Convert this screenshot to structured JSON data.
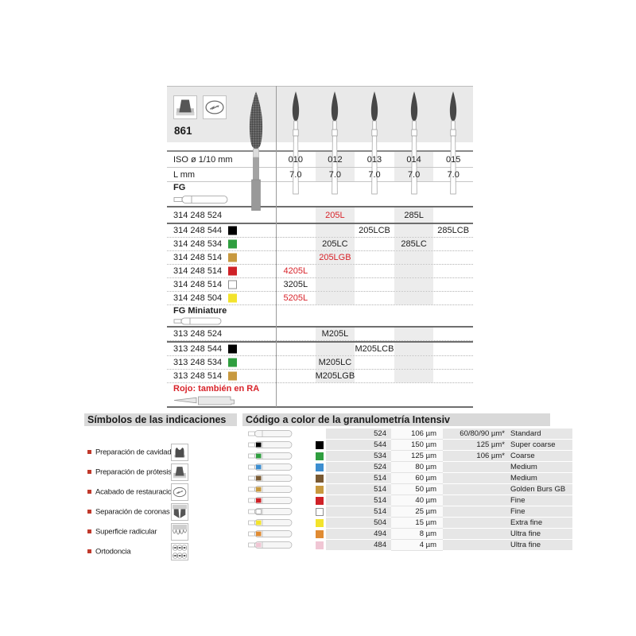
{
  "accent_red": "#d8232a",
  "model": {
    "number": "861",
    "header_icons": [
      "prosthesis-prep-icon",
      "restoration-finish-icon"
    ]
  },
  "spec_table": {
    "iso_label": "ISO ø 1/10 mm",
    "iso_values": [
      "010",
      "012",
      "013",
      "014",
      "015"
    ],
    "l_label": "L mm",
    "l_values": [
      "7.0",
      "7.0",
      "7.0",
      "7.0",
      "7.0"
    ],
    "fg_label": "FG",
    "fg_miniature_label": "FG Miniature",
    "ra_note": "Rojo: también en RA"
  },
  "fg_rows": [
    {
      "code": "314 248 524",
      "swatch": null,
      "values": [
        {
          "col": 2,
          "text": "205L",
          "red": true
        },
        {
          "col": 4,
          "text": "285L"
        }
      ]
    },
    {
      "code": "314 248 544",
      "swatch": "#000000",
      "values": [
        {
          "col": 3,
          "text": "205LCB"
        },
        {
          "col": 5,
          "text": "285LCB"
        }
      ]
    },
    {
      "code": "314 248 534",
      "swatch": "#2f9e3f",
      "values": [
        {
          "col": 2,
          "text": "205LC"
        },
        {
          "col": 4,
          "text": "285LC"
        }
      ]
    },
    {
      "code": "314 248 514",
      "swatch": "#c8993f",
      "values": [
        {
          "col": 2,
          "text": "205LGB",
          "red": true
        }
      ]
    },
    {
      "code": "314 248 514",
      "swatch": "#cf2127",
      "values": [
        {
          "col": 1,
          "text": "4205L",
          "red": true
        }
      ]
    },
    {
      "code": "314 248 514",
      "swatch": "#ffffff",
      "values": [
        {
          "col": 1,
          "text": "3205L"
        }
      ]
    },
    {
      "code": "314 248 504",
      "swatch": "#f3e32c",
      "values": [
        {
          "col": 1,
          "text": "5205L",
          "red": true
        }
      ]
    }
  ],
  "fg_miniature_rows": [
    {
      "code": "313 248 524",
      "swatch": null,
      "values": [
        {
          "col": 2,
          "text": "M205L"
        }
      ]
    },
    {
      "code": "313 248 544",
      "swatch": "#000000",
      "values": [
        {
          "col": 3,
          "text": "M205LCB"
        }
      ]
    },
    {
      "code": "313 248 534",
      "swatch": "#2f9e3f",
      "values": [
        {
          "col": 2,
          "text": "M205LC"
        }
      ]
    },
    {
      "code": "313 248 514",
      "swatch": "#c8993f",
      "values": [
        {
          "col": 2,
          "text": "M205LGB"
        }
      ]
    }
  ],
  "symbols": {
    "title": "Símbolos de las indicaciones",
    "items": [
      {
        "label": "Preparación de cavidades",
        "icon": "cavity-prep-icon"
      },
      {
        "label": "Preparación de prótesis",
        "icon": "prosthesis-prep-icon"
      },
      {
        "label": "Acabado de restauraciones",
        "icon": "restoration-finish-icon"
      },
      {
        "label": "Separación de coronas",
        "icon": "crown-separation-icon"
      },
      {
        "label": "Superficie radicular",
        "icon": "root-surface-icon"
      },
      {
        "label": "Ortodoncia",
        "icon": "orthodontics-icon"
      }
    ]
  },
  "grit": {
    "title": "Código a color de la granulometría Intensiv",
    "rows": [
      {
        "swatch": null,
        "code": "524",
        "size": "106 µm",
        "extra": "60/80/90 µm*",
        "desc": "Standard"
      },
      {
        "swatch": "#000000",
        "code": "544",
        "size": "150 µm",
        "extra": "125 µm*",
        "desc": "Super coarse"
      },
      {
        "swatch": "#2f9e3f",
        "code": "534",
        "size": "125 µm",
        "extra": "106 µm*",
        "desc": "Coarse"
      },
      {
        "swatch": "#3d8ed0",
        "code": "524",
        "size": "80 µm",
        "extra": "",
        "desc": "Medium"
      },
      {
        "swatch": "#7a5a33",
        "code": "514",
        "size": "60 µm",
        "extra": "",
        "desc": "Medium"
      },
      {
        "swatch": "#c8993f",
        "code": "514",
        "size": "50 µm",
        "extra": "",
        "desc": "Golden Burs GB"
      },
      {
        "swatch": "#cf2127",
        "code": "514",
        "size": "40 µm",
        "extra": "",
        "desc": "Fine"
      },
      {
        "swatch": "#ffffff",
        "code": "514",
        "size": "25 µm",
        "extra": "",
        "desc": "Fine"
      },
      {
        "swatch": "#f3e32c",
        "code": "504",
        "size": "15 µm",
        "extra": "",
        "desc": "Extra fine"
      },
      {
        "swatch": "#e08b33",
        "code": "494",
        "size": "8 µm",
        "extra": "",
        "desc": "Ultra fine"
      },
      {
        "swatch": "#f0c6d4",
        "code": "484",
        "size": "4 µm",
        "extra": "",
        "desc": "Ultra fine"
      }
    ]
  }
}
